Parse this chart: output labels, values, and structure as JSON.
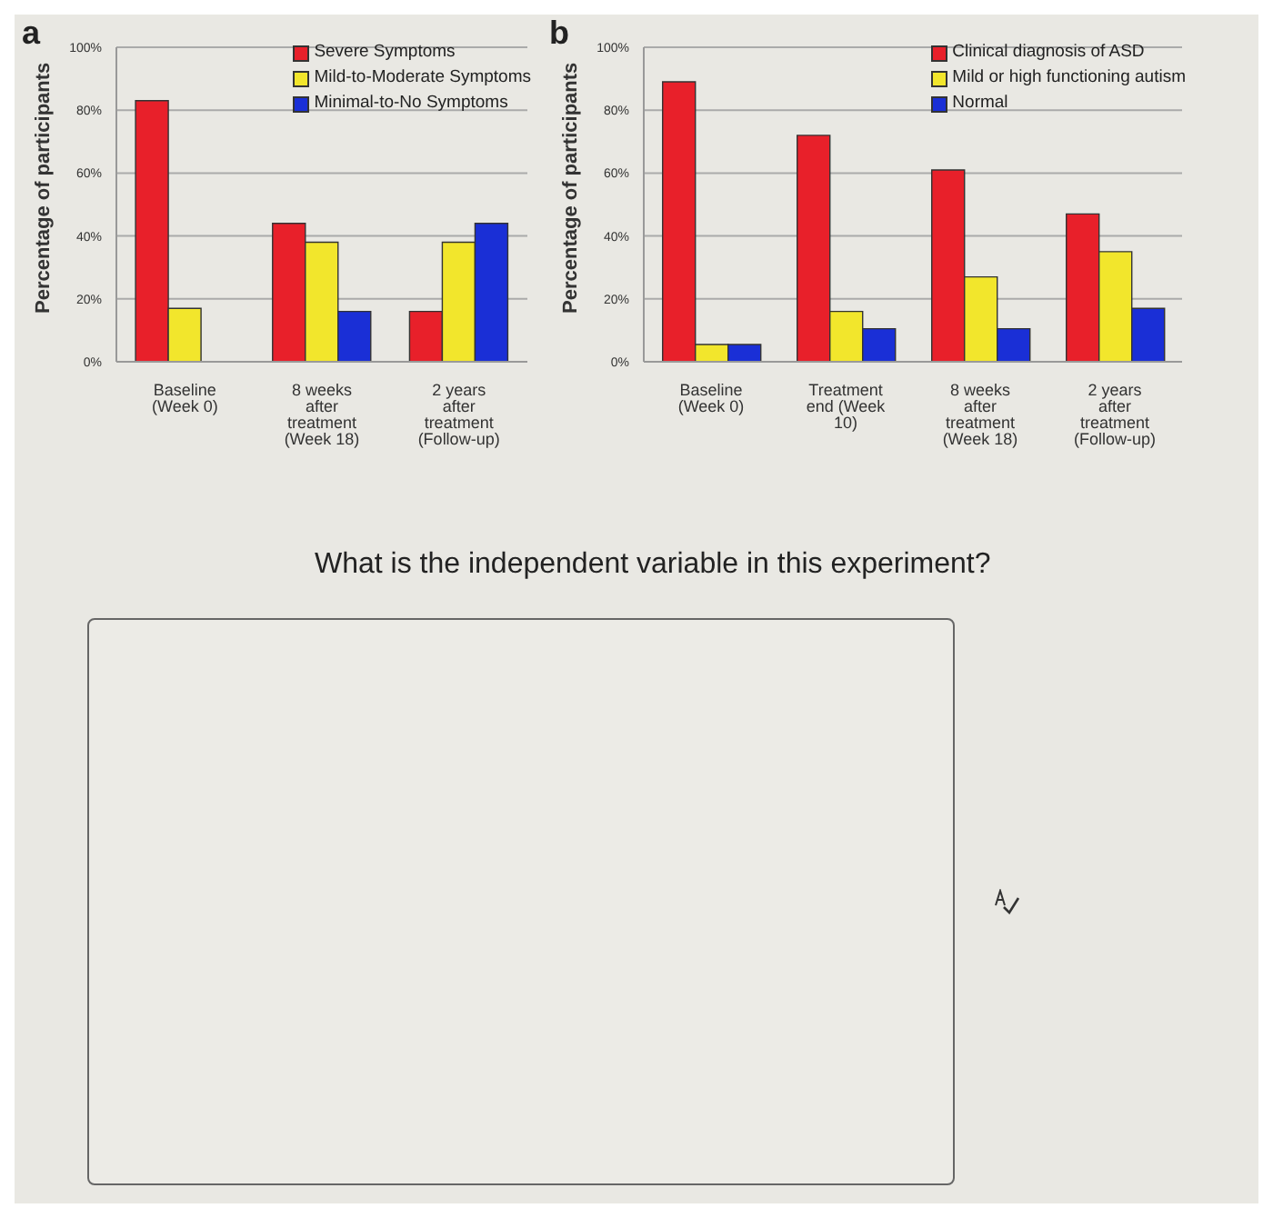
{
  "chart_data": [
    {
      "type": "bar",
      "title": "a",
      "ylabel": "Percentage of participants",
      "categories": [
        "Baseline (Week 0)",
        "8 weeks after treatment (Week 18)",
        "2 years after treatment (Follow-up)"
      ],
      "series": [
        {
          "name": "Severe Symptoms",
          "color": "#e8202a",
          "values": [
            83,
            44,
            16
          ]
        },
        {
          "name": "Mild-to-Moderate Symptoms",
          "color": "#f2e62c",
          "values": [
            17,
            38,
            38
          ]
        },
        {
          "name": "Minimal-to-No Symptoms",
          "color": "#1a2fd6",
          "values": [
            null,
            16,
            44
          ]
        }
      ],
      "ylim": [
        0,
        100
      ],
      "yticks": [
        {
          "value": 0,
          "label": "0%"
        },
        {
          "value": 20,
          "label": "20%"
        },
        {
          "value": 40,
          "label": "40%"
        },
        {
          "value": 60,
          "label": "60%"
        },
        {
          "value": 80,
          "label": "80%"
        },
        {
          "value": 100,
          "label": "100%"
        }
      ],
      "grid": "y",
      "legend": "top right"
    },
    {
      "type": "bar",
      "title": "b",
      "ylabel": "Percentage of participants",
      "categories": [
        "Baseline (Week 0)",
        "Treatment end (Week 10)",
        "8 weeks after treatment (Week 18)",
        "2 years after treatment (Follow-up)"
      ],
      "series": [
        {
          "name": "Clinical diagnosis of ASD",
          "color": "#e8202a",
          "values": [
            89,
            72,
            61,
            47
          ]
        },
        {
          "name": "Mild or high functioning autism",
          "color": "#f2e62c",
          "values": [
            5.5,
            16,
            27,
            35
          ]
        },
        {
          "name": "Normal",
          "color": "#1a2fd6",
          "values": [
            5.5,
            10.5,
            10.5,
            17
          ]
        }
      ],
      "ylim": [
        0,
        100
      ],
      "yticks": [
        {
          "value": 0,
          "label": "0%"
        },
        {
          "value": 20,
          "label": "20%"
        },
        {
          "value": 40,
          "label": "40%"
        },
        {
          "value": 60,
          "label": "60%"
        },
        {
          "value": 80,
          "label": "80%"
        },
        {
          "value": 100,
          "label": "100%"
        }
      ],
      "grid": "y",
      "legend": "top right"
    },
    {
      "type": "other",
      "title": "What is the independent variable in this experiment?"
    }
  ]
}
